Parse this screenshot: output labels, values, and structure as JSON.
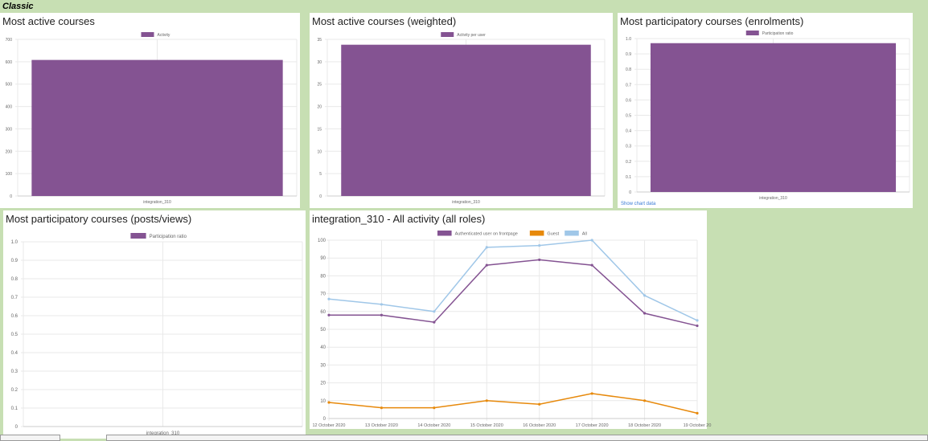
{
  "section_title": "Classic",
  "show_chart_data": "Show chart data",
  "colors": {
    "purple": "#845392",
    "orange": "#e7890b",
    "lightblue": "#a0c7e8",
    "grid": "#e9e9e9",
    "axis": "#999999"
  },
  "panels": [
    {
      "key": "p1",
      "title": "Most active courses"
    },
    {
      "key": "p2",
      "title": "Most active courses (weighted)"
    },
    {
      "key": "p3",
      "title": "Most participatory courses (enrolments)"
    },
    {
      "key": "p4",
      "title": "Most participatory courses (posts/views)"
    },
    {
      "key": "p5",
      "title": "integration_310 - All activity (all roles)"
    }
  ],
  "chart_data": [
    {
      "type": "bar",
      "title": "Most active courses",
      "categories": [
        "integration_310"
      ],
      "series": [
        {
          "name": "Activity",
          "values": [
            608
          ]
        }
      ],
      "ylim": [
        0,
        700
      ],
      "yticks": [
        0,
        100,
        200,
        300,
        400,
        500,
        600,
        700
      ],
      "legend": "top"
    },
    {
      "type": "bar",
      "title": "Most active courses (weighted)",
      "categories": [
        "integration_310"
      ],
      "series": [
        {
          "name": "Activity per user",
          "values": [
            33.8
          ]
        }
      ],
      "ylim": [
        0,
        35
      ],
      "yticks": [
        0,
        5,
        10,
        15,
        20,
        25,
        30,
        35
      ],
      "legend": "top"
    },
    {
      "type": "bar",
      "title": "Most participatory courses (enrolments)",
      "categories": [
        "integration_310"
      ],
      "series": [
        {
          "name": "Participation ratio",
          "values": [
            0.97
          ]
        }
      ],
      "ylim": [
        0,
        1.0
      ],
      "yticks": [
        "0",
        "0.1",
        "0.2",
        "0.3",
        "0.4",
        "0.5",
        "0.6",
        "0.7",
        "0.8",
        "0.9",
        "1.0"
      ],
      "legend": "top"
    },
    {
      "type": "bar",
      "title": "Most participatory courses (posts/views)",
      "categories": [
        "integration_310"
      ],
      "series": [
        {
          "name": "Participation ratio",
          "values": [
            0
          ]
        }
      ],
      "ylim": [
        0,
        1.0
      ],
      "yticks": [
        "0",
        "0.1",
        "0.2",
        "0.3",
        "0.4",
        "0.5",
        "0.6",
        "0.7",
        "0.8",
        "0.9",
        "1.0"
      ],
      "legend": "top"
    },
    {
      "type": "line",
      "title": "integration_310 - All activity (all roles)",
      "x": [
        "12 October 2020",
        "13 October 2020",
        "14 October 2020",
        "15 October 2020",
        "16 October 2020",
        "17 October 2020",
        "18 October 2020",
        "19 October 20"
      ],
      "series": [
        {
          "name": "Authenticated user on frontpage",
          "values": [
            58,
            58,
            54,
            86,
            89,
            86,
            59,
            52
          ]
        },
        {
          "name": "Guest",
          "values": [
            9,
            6,
            6,
            10,
            8,
            14,
            10,
            3
          ]
        },
        {
          "name": "All",
          "values": [
            67,
            64,
            60,
            96,
            97,
            100,
            69,
            55
          ]
        }
      ],
      "ylim": [
        0,
        100
      ],
      "yticks": [
        0,
        10,
        20,
        30,
        40,
        50,
        60,
        70,
        80,
        90,
        100
      ],
      "legend": "top"
    }
  ]
}
